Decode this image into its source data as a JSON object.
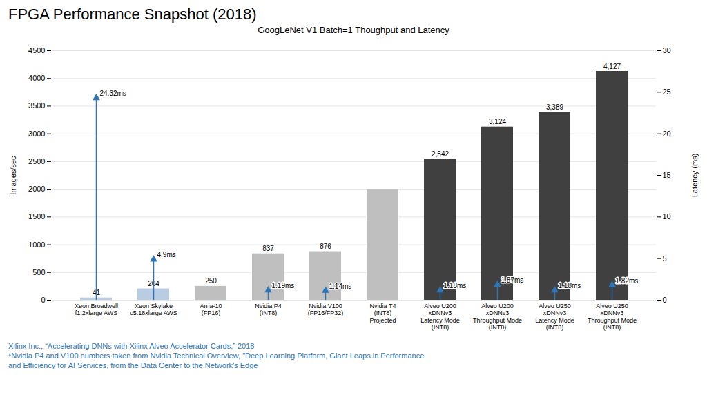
{
  "chart_data": {
    "type": "bar",
    "title": "FPGA Performance Snapshot (2018)",
    "subtitle": "GoogLeNet V1 Batch=1 Thoughput and Latency",
    "ylabel": "Images/sec",
    "y2label": "Latency (ms)",
    "ylim": [
      0,
      4500
    ],
    "yticks": [
      0,
      500,
      1000,
      1500,
      2000,
      2500,
      3000,
      3500,
      4000,
      4500
    ],
    "y2lim": [
      0,
      30
    ],
    "y2ticks": [
      0,
      5,
      10,
      15,
      20,
      25,
      30
    ],
    "grid": true,
    "data_labels": true,
    "categories": [
      "Xeon Broadwell\nf1.2xlarge AWS",
      "Xeon Skylake\nc5.18xlarge AWS",
      "Arria-10\n(FP16)",
      "Nvidia P4\n(INT8)",
      "Nvidia V100\n(FP16/FP32)",
      "Nvidia T4\n(INT8)\nProjected",
      "Alveo U200\nxDNNv3\nLatency Mode\n(INT8)",
      "Alveo U200\nxDNNv3\nThroughput Mode\n(INT8)",
      "Alveo U250\nxDNNv3\nLatency Mode\n(INT8)",
      "Alveo U250\nxDNNv3\nThroughput Mode\n(INT8)"
    ],
    "series": [
      {
        "type": "bar",
        "values": [
          41,
          204,
          250,
          837,
          876,
          2000,
          2542,
          3124,
          3389,
          4127
        ],
        "value_labels": [
          "41",
          "204",
          "250",
          "837",
          "876",
          null,
          "2,542",
          "3,124",
          "3,389",
          "4,127"
        ],
        "colors": [
          "#b8cce4",
          "#b8cce4",
          "#bfbfbf",
          "#bfbfbf",
          "#bfbfbf",
          "#bfbfbf",
          "#404040",
          "#404040",
          "#404040",
          "#404040"
        ]
      },
      {
        "type": "arrow",
        "axis": "y2",
        "color": "#2e75b6",
        "values": [
          24.32,
          4.9,
          null,
          1.19,
          1.14,
          null,
          1.18,
          1.87,
          1.18,
          1.82
        ],
        "value_labels": [
          "24.32ms",
          "4.9ms",
          null,
          "1.19ms",
          "1.14ms",
          null,
          "1.18ms",
          "1.87ms",
          "1.18ms",
          "1.82ms"
        ]
      }
    ],
    "annotations": [
      {
        "text": "Xilinx Inc., “Accelerating DNNs with Xilinx Alveo Accelerator Cards,” 2018",
        "color": "#2e75b6"
      },
      {
        "text": "*Nvidia P4 and V100 numbers taken from Nvidia Technical Overview, \"Deep Learning Platform, Giant Leaps in Performance",
        "color": "#2e75b6"
      },
      {
        "text": "and Efficiency for AI Services, from the Data Center to the Network's Edge",
        "color": "#2e75b6"
      }
    ]
  }
}
